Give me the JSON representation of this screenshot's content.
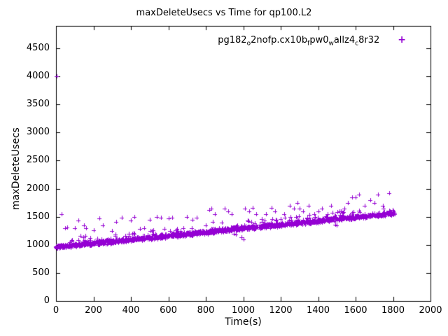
{
  "chart_data": {
    "type": "scatter",
    "title": "maxDeleteUsecs vs Time for qp100.L2",
    "xlabel": "Time(s)",
    "ylabel": "maxDeleteUsecs",
    "xlim": [
      0,
      2000
    ],
    "ylim": [
      0,
      4900
    ],
    "xticks": [
      0,
      200,
      400,
      600,
      800,
      1000,
      1200,
      1400,
      1600,
      1800,
      2000
    ],
    "yticks": [
      0,
      500,
      1000,
      1500,
      2000,
      2500,
      3000,
      3500,
      4000,
      4500
    ],
    "grid": false,
    "legend_position": "top-right-inside",
    "marker": "plus",
    "color": "#9400D3",
    "series": [
      {
        "name": "pg182_o2nofp.cx10b_fpw0_wallz4_c8r32",
        "name_rich": [
          {
            "t": "pg182"
          },
          {
            "t": "o",
            "sub": true
          },
          {
            "t": "2nofp.cx10b"
          },
          {
            "t": "f",
            "sub": true
          },
          {
            "t": "pw0"
          },
          {
            "t": "w",
            "sub": true
          },
          {
            "t": "allz4"
          },
          {
            "t": "c",
            "sub": true
          },
          {
            "t": "8r32"
          }
        ],
        "band": {
          "x_start": 0,
          "x_end": 1810,
          "y_start": 960,
          "y_end": 1560,
          "noise": 45,
          "spike_prob": 0.08,
          "spike_max": 130,
          "count": 1600,
          "seed": 1337
        },
        "outlier_points": [
          [
            5,
            4000
          ],
          [
            30,
            1550
          ],
          [
            50,
            1300
          ],
          [
            60,
            1310
          ],
          [
            100,
            1300
          ],
          [
            120,
            1440
          ],
          [
            150,
            1350
          ],
          [
            160,
            1300
          ],
          [
            200,
            1260
          ],
          [
            230,
            1470
          ],
          [
            250,
            1350
          ],
          [
            300,
            1250
          ],
          [
            320,
            1410
          ],
          [
            350,
            1480
          ],
          [
            400,
            1430
          ],
          [
            420,
            1500
          ],
          [
            450,
            1280
          ],
          [
            470,
            1300
          ],
          [
            500,
            1450
          ],
          [
            520,
            1260
          ],
          [
            540,
            1500
          ],
          [
            560,
            1480
          ],
          [
            600,
            1470
          ],
          [
            620,
            1480
          ],
          [
            640,
            1170
          ],
          [
            650,
            1250
          ],
          [
            680,
            1300
          ],
          [
            700,
            1500
          ],
          [
            730,
            1450
          ],
          [
            750,
            1480
          ],
          [
            800,
            1350
          ],
          [
            820,
            1620
          ],
          [
            830,
            1650
          ],
          [
            850,
            1550
          ],
          [
            870,
            1300
          ],
          [
            900,
            1650
          ],
          [
            920,
            1600
          ],
          [
            940,
            1550
          ],
          [
            950,
            1200
          ],
          [
            960,
            1180
          ],
          [
            970,
            1350
          ],
          [
            990,
            1140
          ],
          [
            1000,
            1100
          ],
          [
            1010,
            1650
          ],
          [
            1030,
            1600
          ],
          [
            1050,
            1660
          ],
          [
            1070,
            1550
          ],
          [
            1100,
            1460
          ],
          [
            1120,
            1550
          ],
          [
            1150,
            1660
          ],
          [
            1170,
            1590
          ],
          [
            1200,
            1460
          ],
          [
            1220,
            1550
          ],
          [
            1250,
            1700
          ],
          [
            1270,
            1650
          ],
          [
            1290,
            1750
          ],
          [
            1300,
            1650
          ],
          [
            1320,
            1600
          ],
          [
            1350,
            1700
          ],
          [
            1380,
            1550
          ],
          [
            1400,
            1600
          ],
          [
            1420,
            1650
          ],
          [
            1450,
            1550
          ],
          [
            1470,
            1700
          ],
          [
            1490,
            1360
          ],
          [
            1500,
            1350
          ],
          [
            1520,
            1600
          ],
          [
            1540,
            1650
          ],
          [
            1560,
            1750
          ],
          [
            1580,
            1850
          ],
          [
            1600,
            1850
          ],
          [
            1620,
            1900
          ],
          [
            1650,
            1700
          ],
          [
            1680,
            1800
          ],
          [
            1700,
            1750
          ],
          [
            1720,
            1900
          ],
          [
            1750,
            1650
          ],
          [
            1780,
            1920
          ],
          [
            1800,
            1600
          ]
        ]
      }
    ]
  }
}
